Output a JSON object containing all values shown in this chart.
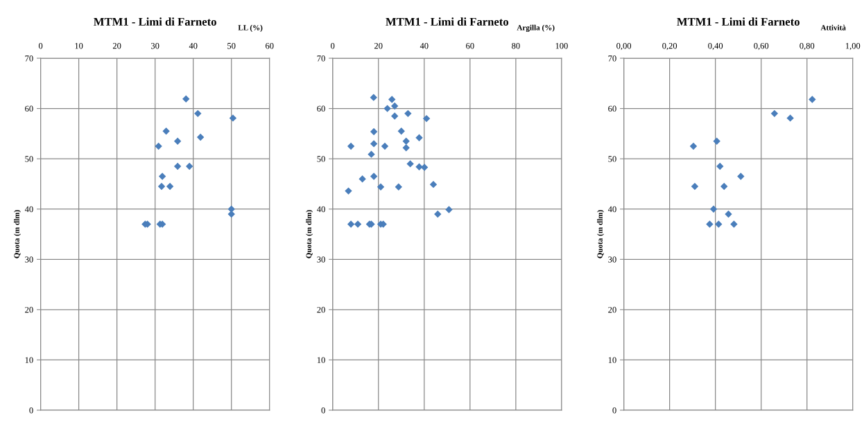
{
  "chart_data": [
    {
      "type": "scatter",
      "title": "MTM1 - Limi di Farneto",
      "xlabel": "LL (%)",
      "ylabel": "Quota (m dlm)",
      "xlim": [
        0,
        60
      ],
      "xticks": [
        0,
        10,
        20,
        30,
        40,
        50,
        60
      ],
      "ylim": [
        0,
        70
      ],
      "yticks": [
        0,
        10,
        20,
        30,
        40,
        50,
        60,
        70
      ],
      "grid": true,
      "marker": "diamond",
      "legend": false,
      "series": [
        {
          "color": "#4a7ebb",
          "x": [
            38.1,
            41.2,
            50.4,
            32.9,
            41.9,
            35.9,
            30.9,
            35.9,
            39.0,
            31.9,
            31.7,
            33.9,
            50.0,
            50.0,
            27.4,
            28.0,
            31.3,
            31.9
          ],
          "values": [
            61.9,
            59.0,
            58.1,
            55.5,
            54.3,
            53.5,
            52.5,
            48.5,
            48.5,
            46.5,
            44.5,
            44.5,
            40.0,
            39.0,
            37.0,
            37.0,
            37.0,
            37.0
          ]
        }
      ]
    },
    {
      "type": "scatter",
      "title": "MTM1 - Limi di Farneto",
      "xlabel": "Argilla (%)",
      "ylabel": "Quota (m dlm)",
      "xlim": [
        0,
        100
      ],
      "xticks": [
        0,
        20,
        40,
        60,
        80,
        100
      ],
      "ylim": [
        0,
        70
      ],
      "yticks": [
        0,
        10,
        20,
        30,
        40,
        50,
        60,
        70
      ],
      "grid": true,
      "marker": "diamond",
      "legend": false,
      "series": [
        {
          "color": "#4a7ebb",
          "x": [
            17.9,
            25.9,
            27.1,
            23.9,
            32.9,
            27.1,
            41.0,
            18.0,
            30.0,
            37.8,
            32.1,
            18.0,
            8.0,
            22.8,
            32.1,
            16.9,
            33.9,
            37.8,
            40.1,
            13.0,
            18.0,
            6.9,
            21.0,
            28.8,
            44.0,
            50.8,
            45.9,
            8.0,
            11.0,
            16.1,
            16.9,
            21.0,
            22.1
          ],
          "values": [
            62.2,
            61.8,
            60.5,
            60.0,
            59.0,
            58.5,
            58.0,
            55.4,
            55.5,
            54.2,
            53.5,
            53.0,
            52.5,
            52.5,
            52.2,
            50.9,
            49.0,
            48.4,
            48.3,
            46.0,
            46.5,
            43.6,
            44.4,
            44.4,
            44.9,
            39.9,
            39.0,
            37.0,
            37.0,
            37.0,
            37.0,
            37.0,
            37.0
          ]
        }
      ]
    },
    {
      "type": "scatter",
      "title": "MTM1 - Limi di Farneto",
      "xlabel": "Attività",
      "ylabel": "Quota (m dlm)",
      "xlim": [
        0,
        1
      ],
      "xticks": [
        {
          "value": 0,
          "label": "0,00"
        },
        {
          "value": 0.2,
          "label": "0,20"
        },
        {
          "value": 0.4,
          "label": "0,40"
        },
        {
          "value": 0.6,
          "label": "0,60"
        },
        {
          "value": 0.8,
          "label": "0,80"
        },
        {
          "value": 1,
          "label": "1,00"
        }
      ],
      "ylim": [
        0,
        70
      ],
      "yticks": [
        0,
        10,
        20,
        30,
        40,
        50,
        60,
        70
      ],
      "grid": true,
      "marker": "diamond",
      "legend": false,
      "series": [
        {
          "color": "#4a7ebb",
          "x": [
            0.823,
            0.658,
            0.727,
            0.406,
            0.304,
            0.42,
            0.511,
            0.31,
            0.438,
            0.392,
            0.457,
            0.375,
            0.414,
            0.481
          ],
          "values": [
            61.8,
            59.0,
            58.1,
            53.5,
            52.5,
            48.5,
            46.5,
            44.5,
            44.5,
            40.0,
            39.0,
            37.0,
            37.0,
            37.0
          ]
        }
      ]
    }
  ]
}
